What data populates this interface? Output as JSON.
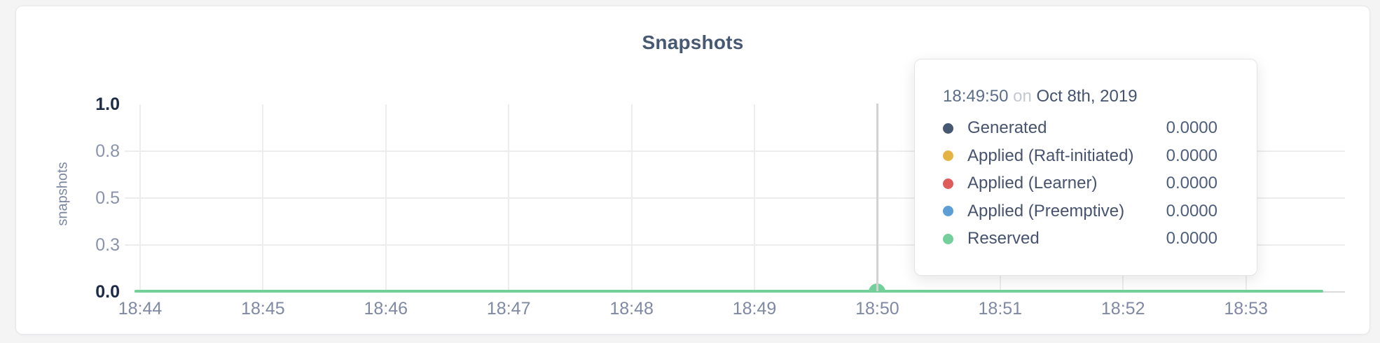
{
  "chart_data": {
    "type": "line",
    "title": "Snapshots",
    "xlabel": "",
    "ylabel": "snapshots",
    "ylim": [
      0.0,
      1.0
    ],
    "grid": true,
    "y_ticks": [
      {
        "value": 0.0,
        "label": "0.0",
        "minmax": true,
        "gridline": false
      },
      {
        "value": 0.25,
        "label": "0.3",
        "minmax": false,
        "gridline": true
      },
      {
        "value": 0.5,
        "label": "0.5",
        "minmax": false,
        "gridline": true
      },
      {
        "value": 0.75,
        "label": "0.8",
        "minmax": false,
        "gridline": true
      },
      {
        "value": 1.0,
        "label": "1.0",
        "minmax": true,
        "gridline": false
      }
    ],
    "x_tick_labels": [
      "18:44",
      "18:45",
      "18:46",
      "18:47",
      "18:48",
      "18:49",
      "18:50",
      "18:51",
      "18:52",
      "18:53"
    ],
    "series": [
      {
        "name": "Generated",
        "color": "#475872",
        "values": [
          0,
          0,
          0,
          0,
          0,
          0,
          0,
          0,
          0,
          0
        ]
      },
      {
        "name": "Applied (Raft-initiated)",
        "color": "#e3b444",
        "values": [
          0,
          0,
          0,
          0,
          0,
          0,
          0,
          0,
          0,
          0
        ]
      },
      {
        "name": "Applied (Learner)",
        "color": "#de5d5b",
        "values": [
          0,
          0,
          0,
          0,
          0,
          0,
          0,
          0,
          0,
          0
        ]
      },
      {
        "name": "Applied (Preemptive)",
        "color": "#5b9fd6",
        "values": [
          0,
          0,
          0,
          0,
          0,
          0,
          0,
          0,
          0,
          0
        ]
      },
      {
        "name": "Reserved",
        "color": "#74d09b",
        "values": [
          0,
          0,
          0,
          0,
          0,
          0,
          0,
          0,
          0,
          0
        ]
      }
    ],
    "visible_line_color": "#74d09b",
    "hover_x_label": "18:50"
  },
  "tooltip": {
    "time": "18:49:50",
    "conjunction": "on",
    "date": "Oct 8th, 2019",
    "rows": [
      {
        "label": "Generated",
        "value": "0.0000",
        "color": "#475872"
      },
      {
        "label": "Applied (Raft-initiated)",
        "value": "0.0000",
        "color": "#e3b444"
      },
      {
        "label": "Applied (Learner)",
        "value": "0.0000",
        "color": "#de5d5b"
      },
      {
        "label": "Applied (Preemptive)",
        "value": "0.0000",
        "color": "#5b9fd6"
      },
      {
        "label": "Reserved",
        "value": "0.0000",
        "color": "#74d09b"
      }
    ]
  }
}
